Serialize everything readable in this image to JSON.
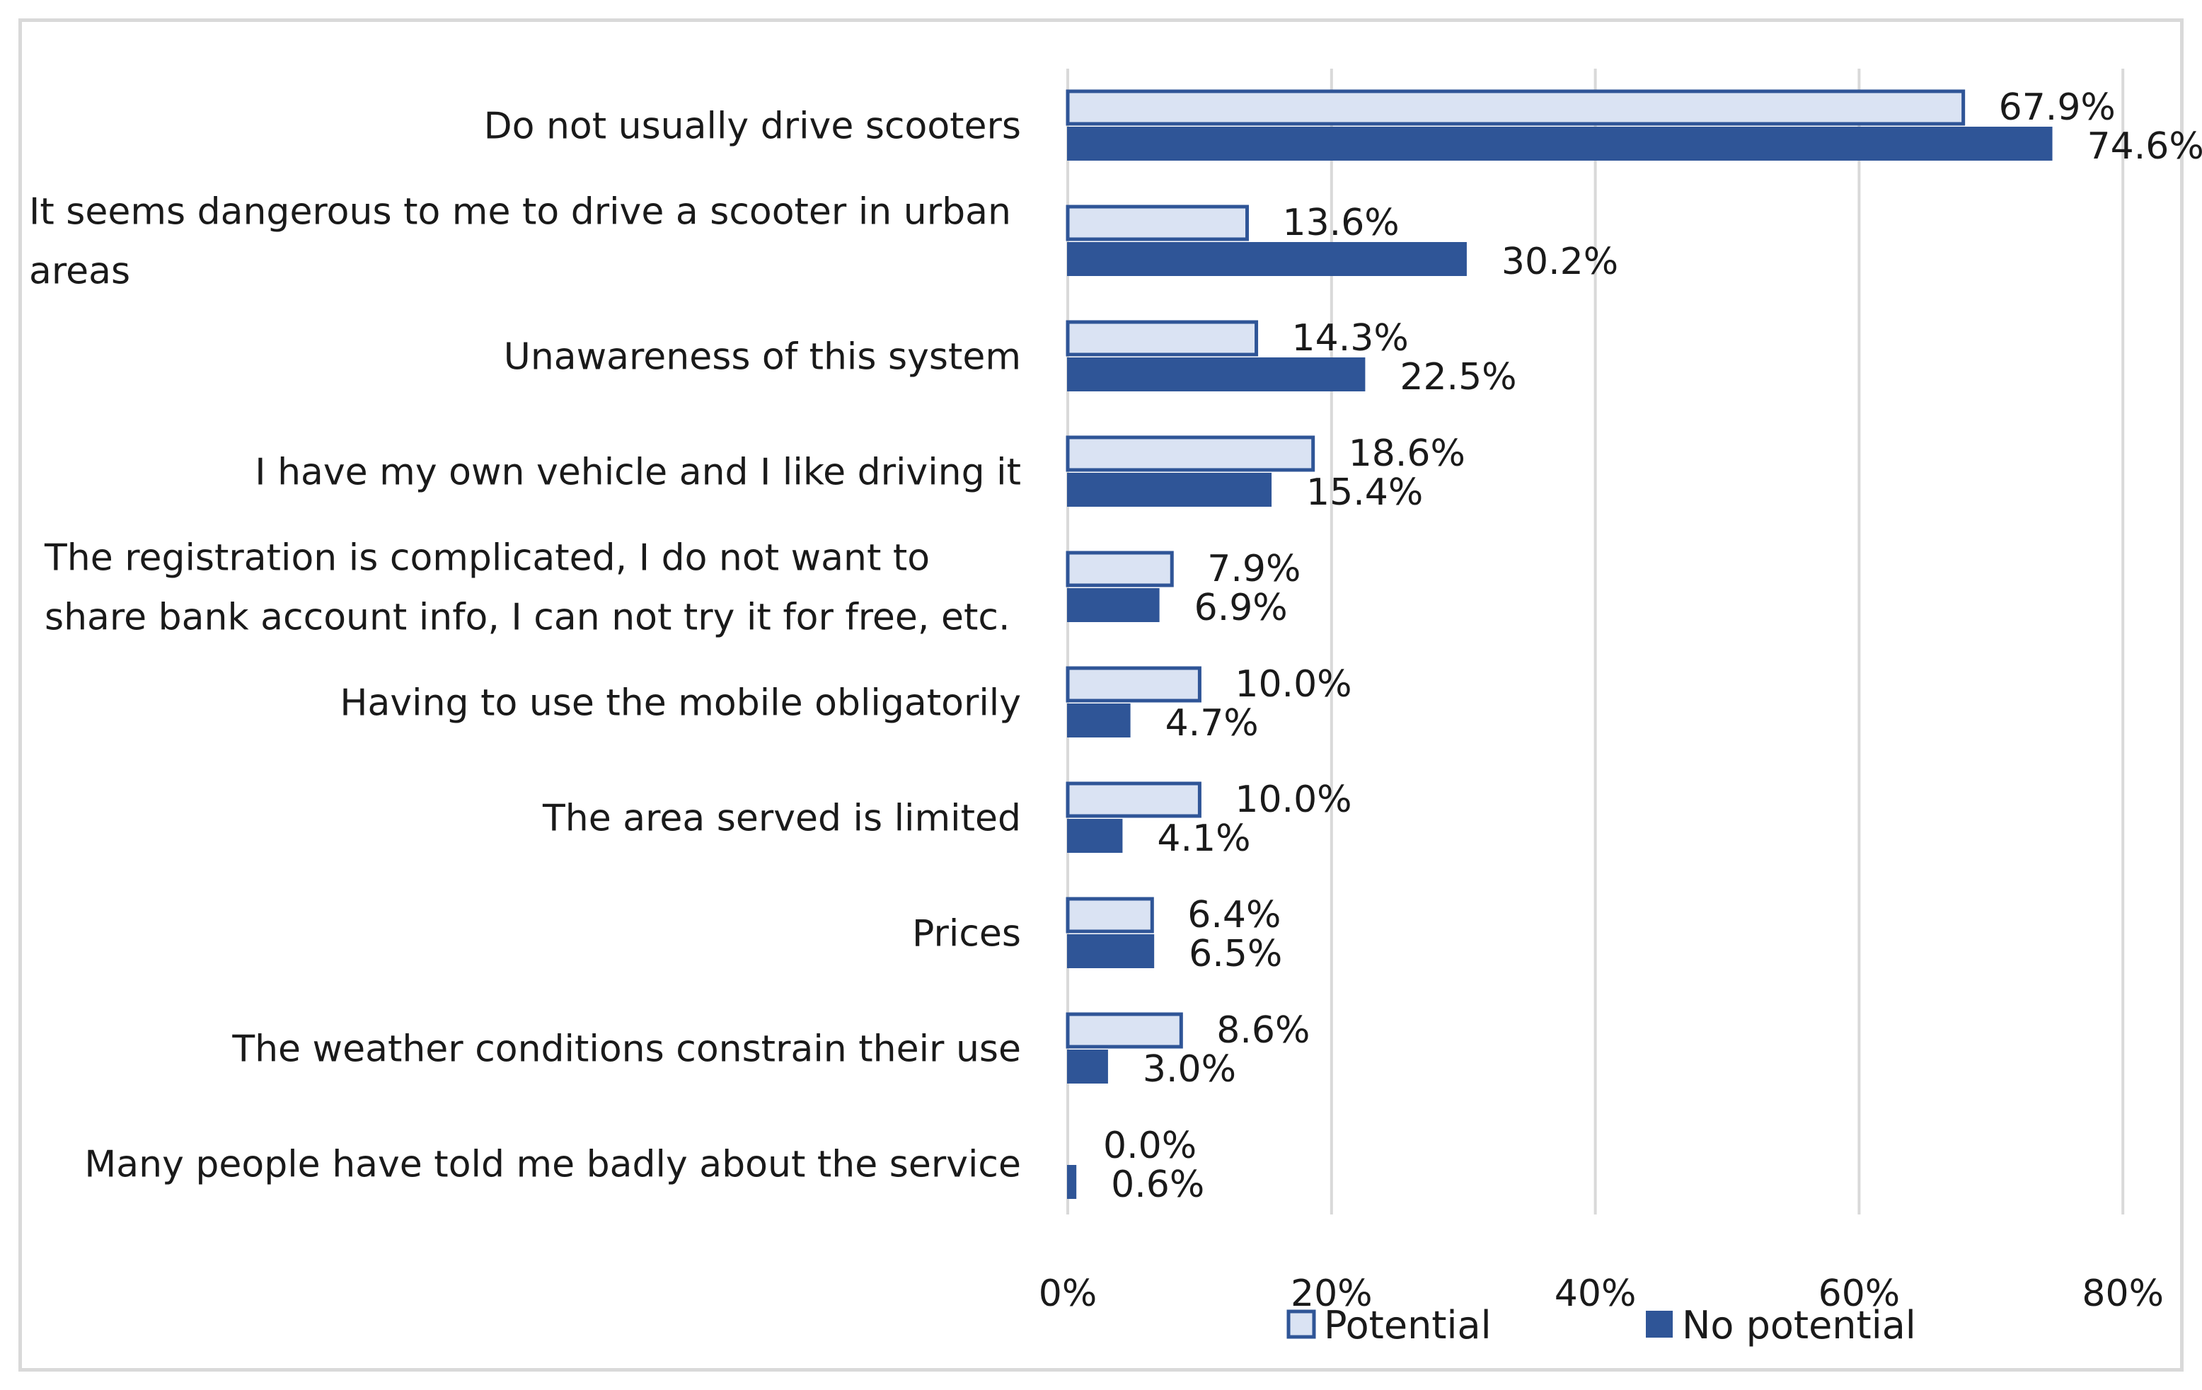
{
  "chart_data": {
    "type": "bar",
    "orientation": "horizontal",
    "title": "",
    "xlabel": "",
    "ylabel": "",
    "xlim": [
      0,
      80
    ],
    "ticks": [
      "0%",
      "20%",
      "40%",
      "60%",
      "80%"
    ],
    "tick_values": [
      0,
      20,
      40,
      60,
      80
    ],
    "grid": true,
    "legend_position": "bottom",
    "categories": [
      [
        "Do not usually drive scooters"
      ],
      [
        "It seems dangerous to me to drive a scooter in urban",
        "areas"
      ],
      [
        "Unawareness of this system"
      ],
      [
        "I have my own vehicle and I like driving it"
      ],
      [
        "The registration is complicated, I do not want to",
        "share bank account info, I can not try it for free, etc."
      ],
      [
        "Having to use the mobile obligatorily"
      ],
      [
        "The area served is limited"
      ],
      [
        "Prices"
      ],
      [
        "The weather conditions constrain their use"
      ],
      [
        "Many people have told me badly about the service"
      ]
    ],
    "series": [
      {
        "name": "Potential",
        "color": "#dae3f3",
        "border": "#2f5597",
        "values": [
          67.9,
          13.6,
          14.3,
          18.6,
          7.9,
          10.0,
          10.0,
          6.4,
          8.6,
          0.0
        ],
        "labels": [
          "67.9%",
          "13.6%",
          "14.3%",
          "18.6%",
          "7.9%",
          "10.0%",
          "10.0%",
          "6.4%",
          "8.6%",
          "0.0%"
        ]
      },
      {
        "name": "No potential",
        "color": "#2f5597",
        "border": "#2f5597",
        "values": [
          74.6,
          30.2,
          22.5,
          15.4,
          6.9,
          4.7,
          4.1,
          6.5,
          3.0,
          0.6
        ],
        "labels": [
          "74.6%",
          "30.2%",
          "22.5%",
          "15.4%",
          "6.9%",
          "4.7%",
          "4.1%",
          "6.5%",
          "3.0%",
          "0.6%"
        ]
      }
    ]
  }
}
